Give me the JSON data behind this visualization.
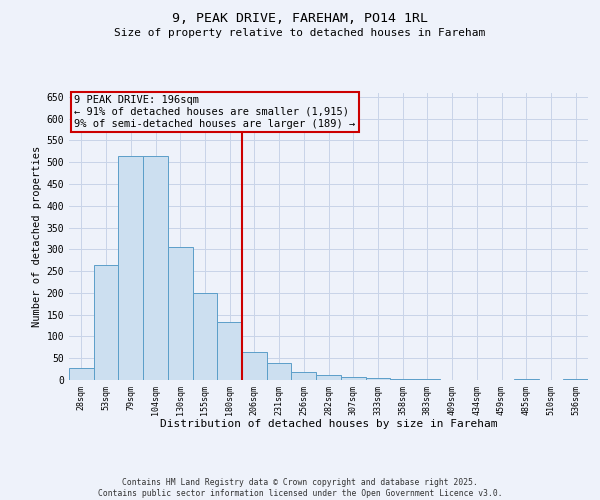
{
  "title": "9, PEAK DRIVE, FAREHAM, PO14 1RL",
  "subtitle": "Size of property relative to detached houses in Fareham",
  "xlabel": "Distribution of detached houses by size in Fareham",
  "ylabel": "Number of detached properties",
  "footer": "Contains HM Land Registry data © Crown copyright and database right 2025.\nContains public sector information licensed under the Open Government Licence v3.0.",
  "bar_color": "#ccdff0",
  "bar_edge_color": "#5b9ec9",
  "vline_color": "#cc0000",
  "annotation_text": "9 PEAK DRIVE: 196sqm\n← 91% of detached houses are smaller (1,915)\n9% of semi-detached houses are larger (189) →",
  "categories": [
    "28sqm",
    "53sqm",
    "79sqm",
    "104sqm",
    "130sqm",
    "155sqm",
    "180sqm",
    "206sqm",
    "231sqm",
    "256sqm",
    "282sqm",
    "307sqm",
    "333sqm",
    "358sqm",
    "383sqm",
    "409sqm",
    "434sqm",
    "459sqm",
    "485sqm",
    "510sqm",
    "536sqm"
  ],
  "values": [
    28,
    265,
    515,
    515,
    305,
    200,
    133,
    65,
    38,
    18,
    12,
    7,
    5,
    3,
    2,
    0,
    0,
    0,
    2,
    0,
    2
  ],
  "ylim": [
    0,
    660
  ],
  "yticks": [
    0,
    50,
    100,
    150,
    200,
    250,
    300,
    350,
    400,
    450,
    500,
    550,
    600,
    650
  ],
  "grid_color": "#c8d4e8",
  "bg_color": "#eef2fa",
  "vline_pos": 6.5
}
